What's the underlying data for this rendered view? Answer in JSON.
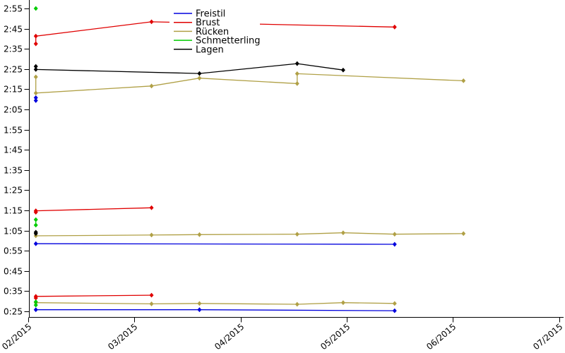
{
  "chart_data": {
    "type": "line",
    "title": "",
    "x_axis": {
      "label": "",
      "ticks": [
        {
          "pos": "2015-02-01",
          "label": "02/2015"
        },
        {
          "pos": "2015-03-01",
          "label": "03/2015"
        },
        {
          "pos": "2015-04-01",
          "label": "04/2015"
        },
        {
          "pos": "2015-05-01",
          "label": "05/2015"
        },
        {
          "pos": "2015-06-01",
          "label": "06/2015"
        },
        {
          "pos": "2015-07-01",
          "label": "07/2015"
        }
      ]
    },
    "y_axis": {
      "label": "",
      "unit": "min:sec",
      "ticks": [
        {
          "sec": 175,
          "label": "2:55"
        },
        {
          "sec": 165,
          "label": "2:45"
        },
        {
          "sec": 155,
          "label": "2:35"
        },
        {
          "sec": 145,
          "label": "2:25"
        },
        {
          "sec": 135,
          "label": "2:15"
        },
        {
          "sec": 125,
          "label": "2:05"
        },
        {
          "sec": 115,
          "label": "1:55"
        },
        {
          "sec": 105,
          "label": "1:45"
        },
        {
          "sec": 95,
          "label": "1:35"
        },
        {
          "sec": 85,
          "label": "1:25"
        },
        {
          "sec": 75,
          "label": "1:15"
        },
        {
          "sec": 65,
          "label": "1:05"
        },
        {
          "sec": 55,
          "label": "0:55"
        },
        {
          "sec": 45,
          "label": "0:45"
        },
        {
          "sec": 35,
          "label": "0:35"
        },
        {
          "sec": 25,
          "label": "0:25"
        }
      ]
    },
    "legend": {
      "position": "top-center",
      "entries": [
        "Freistil",
        "Brust",
        "Rücken",
        "Schmetterling",
        "Lagen"
      ]
    },
    "series": [
      {
        "name": "Freistil",
        "color": "#0000dd",
        "segments": [
          [
            {
              "d": "2015-02-03",
              "s": 130.8,
              "t": "2:10.8"
            },
            {
              "d": "2015-02-03",
              "s": 129.4,
              "t": "2:09.4"
            }
          ],
          [
            {
              "d": "2015-02-03",
              "s": 58.5,
              "t": "0:58.5"
            },
            {
              "d": "2015-05-15",
              "s": 58.2,
              "t": "0:58.2"
            }
          ],
          [
            {
              "d": "2015-02-03",
              "s": 25.8,
              "t": "0:25.8"
            },
            {
              "d": "2015-03-20",
              "s": 25.8,
              "t": "0:25.8"
            },
            {
              "d": "2015-05-15",
              "s": 25.3,
              "t": "0:25.3"
            }
          ]
        ]
      },
      {
        "name": "Brust",
        "color": "#e00000",
        "segments": [
          [
            {
              "d": "2015-02-03",
              "s": 157.5,
              "t": "2:37.5"
            },
            {
              "d": "2015-02-03",
              "s": 161.3,
              "t": "2:41.3"
            },
            {
              "d": "2015-03-06",
              "s": 168.4,
              "t": "2:48.4"
            },
            {
              "d": "2015-05-15",
              "s": 165.8,
              "t": "2:45.8"
            }
          ],
          [
            {
              "d": "2015-02-03",
              "s": 74.1,
              "t": "1:14.1"
            },
            {
              "d": "2015-02-03",
              "s": 74.8,
              "t": "1:14.8"
            },
            {
              "d": "2015-03-06",
              "s": 76.3,
              "t": "1:16.3"
            }
          ],
          [
            {
              "d": "2015-02-03",
              "s": 31.6,
              "t": "0:31.6"
            },
            {
              "d": "2015-02-03",
              "s": 32.4,
              "t": "0:32.4"
            },
            {
              "d": "2015-03-06",
              "s": 33.0,
              "t": "0:33.0"
            }
          ]
        ]
      },
      {
        "name": "Rücken",
        "color": "#b0a046",
        "segments": [
          [
            {
              "d": "2015-02-03",
              "s": 141.1,
              "t": "2:21.1"
            },
            {
              "d": "2015-02-03",
              "s": 133.1,
              "t": "2:13.1"
            },
            {
              "d": "2015-03-06",
              "s": 136.6,
              "t": "2:16.6"
            },
            {
              "d": "2015-03-20",
              "s": 140.5,
              "t": "2:20.5"
            },
            {
              "d": "2015-04-17",
              "s": 137.8,
              "t": "2:17.8"
            },
            {
              "d": "2015-04-17",
              "s": 142.7,
              "t": "2:22.7"
            },
            {
              "d": "2015-06-04",
              "s": 139.2,
              "t": "2:19.2"
            }
          ],
          [
            {
              "d": "2015-02-03",
              "s": 62.4,
              "t": "1:02.4"
            },
            {
              "d": "2015-03-06",
              "s": 62.8,
              "t": "1:02.8"
            },
            {
              "d": "2015-03-20",
              "s": 63.0,
              "t": "1:03.0"
            },
            {
              "d": "2015-04-17",
              "s": 63.2,
              "t": "1:03.2"
            },
            {
              "d": "2015-04-30",
              "s": 63.9,
              "t": "1:03.9"
            },
            {
              "d": "2015-05-15",
              "s": 63.2,
              "t": "1:03.2"
            },
            {
              "d": "2015-06-04",
              "s": 63.5,
              "t": "1:03.5"
            }
          ],
          [
            {
              "d": "2015-02-03",
              "s": 29.3,
              "t": "0:29.3"
            },
            {
              "d": "2015-03-06",
              "s": 28.7,
              "t": "0:28.7"
            },
            {
              "d": "2015-03-20",
              "s": 28.9,
              "t": "0:28.9"
            },
            {
              "d": "2015-04-17",
              "s": 28.5,
              "t": "0:28.5"
            },
            {
              "d": "2015-04-30",
              "s": 29.3,
              "t": "0:29.3"
            },
            {
              "d": "2015-05-15",
              "s": 28.9,
              "t": "0:28.9"
            }
          ]
        ]
      },
      {
        "name": "Schmetterling",
        "color": "#00cc00",
        "segments": [
          [
            {
              "d": "2015-02-03",
              "s": 175.0,
              "t": "2:55.0"
            }
          ],
          [
            {
              "d": "2015-02-03",
              "s": 70.4,
              "t": "1:10.4"
            },
            {
              "d": "2015-02-03",
              "s": 67.7,
              "t": "1:07.7"
            }
          ],
          [
            {
              "d": "2015-02-03",
              "s": 29.7,
              "t": "0:29.7"
            },
            {
              "d": "2015-02-03",
              "s": 28.1,
              "t": "0:28.1"
            }
          ]
        ]
      },
      {
        "name": "Lagen",
        "color": "#000000",
        "segments": [
          [
            {
              "d": "2015-02-03",
              "s": 146.3,
              "t": "2:26.3"
            },
            {
              "d": "2015-02-03",
              "s": 144.8,
              "t": "2:24.8"
            },
            {
              "d": "2015-03-20",
              "s": 142.8,
              "t": "2:22.8"
            },
            {
              "d": "2015-04-17",
              "s": 147.7,
              "t": "2:27.7"
            },
            {
              "d": "2015-04-30",
              "s": 144.5,
              "t": "2:24.5"
            }
          ],
          [
            {
              "d": "2015-02-03",
              "s": 64.2,
              "t": "1:04.2"
            },
            {
              "d": "2015-02-03",
              "s": 63.5,
              "t": "1:03.5"
            }
          ]
        ]
      }
    ],
    "colors": {
      "axis": "#000000",
      "background": "#ffffff",
      "legend_background": "#ffffff"
    }
  }
}
